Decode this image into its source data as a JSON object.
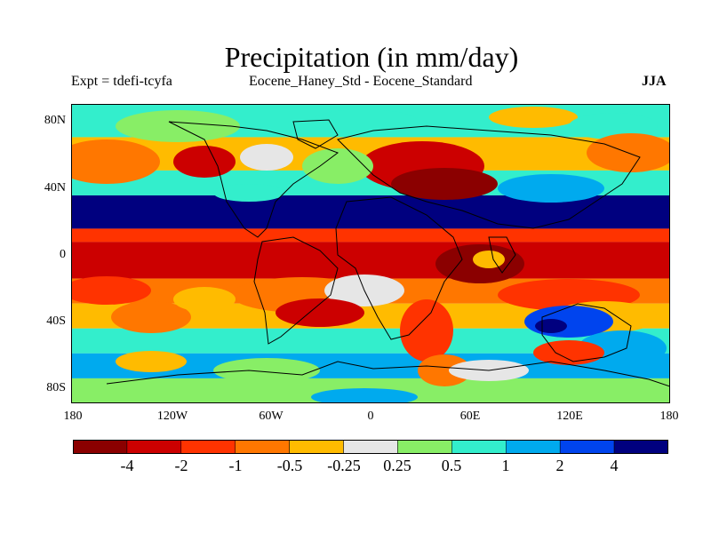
{
  "title": "Precipitation (in mm/day)",
  "subtitle_left": "Expt = tdefi-tcyfa",
  "subtitle_center": "Eocene_Haney_Std - Eocene_Standard",
  "season": "JJA",
  "lat_ticks": [
    "80N",
    "40N",
    "0",
    "40S",
    "80S"
  ],
  "lon_ticks": [
    "180",
    "120W",
    "60W",
    "0",
    "60E",
    "120E",
    "180"
  ],
  "colorbar": {
    "colors": [
      "#8b0000",
      "#cc0000",
      "#ff3300",
      "#ff7700",
      "#ffbb00",
      "#e6e6e6",
      "#88ee66",
      "#33eecc",
      "#00aaee",
      "#0044ee",
      "#00007f"
    ],
    "labels": [
      "-4",
      "-2",
      "-1",
      "-0.5",
      "-0.25",
      "0.25",
      "0.5",
      "1",
      "2",
      "4"
    ]
  },
  "chart_data": {
    "type": "heatmap",
    "title": "Precipitation (in mm/day)",
    "variable": "Precipitation difference",
    "units": "mm/day",
    "experiment": "tdefi-tcyfa",
    "comparison": "Eocene_Haney_Std - Eocene_Standard",
    "season": "JJA",
    "x_range": [
      -180,
      180
    ],
    "y_range": [
      -90,
      90
    ],
    "contour_levels": [
      -4,
      -2,
      -1,
      -0.5,
      -0.25,
      0.25,
      0.5,
      1,
      2,
      4
    ],
    "zonal_bands": [
      {
        "lat_from": 90,
        "lat_to": 70,
        "value": 0.5
      },
      {
        "lat_from": 70,
        "lat_to": 50,
        "value": -0.5
      },
      {
        "lat_from": 50,
        "lat_to": 35,
        "value": 0.5
      },
      {
        "lat_from": 35,
        "lat_to": 15,
        "value": 4
      },
      {
        "lat_from": 15,
        "lat_to": 7,
        "value": -2
      },
      {
        "lat_from": 7,
        "lat_to": -15,
        "value": -4
      },
      {
        "lat_from": -15,
        "lat_to": -30,
        "value": -1
      },
      {
        "lat_from": -30,
        "lat_to": -45,
        "value": -0.5
      },
      {
        "lat_from": -45,
        "lat_to": -60,
        "value": 0.5
      },
      {
        "lat_from": -60,
        "lat_to": -75,
        "value": 1
      },
      {
        "lat_from": -75,
        "lat_to": -90,
        "value": 0.25
      }
    ]
  }
}
